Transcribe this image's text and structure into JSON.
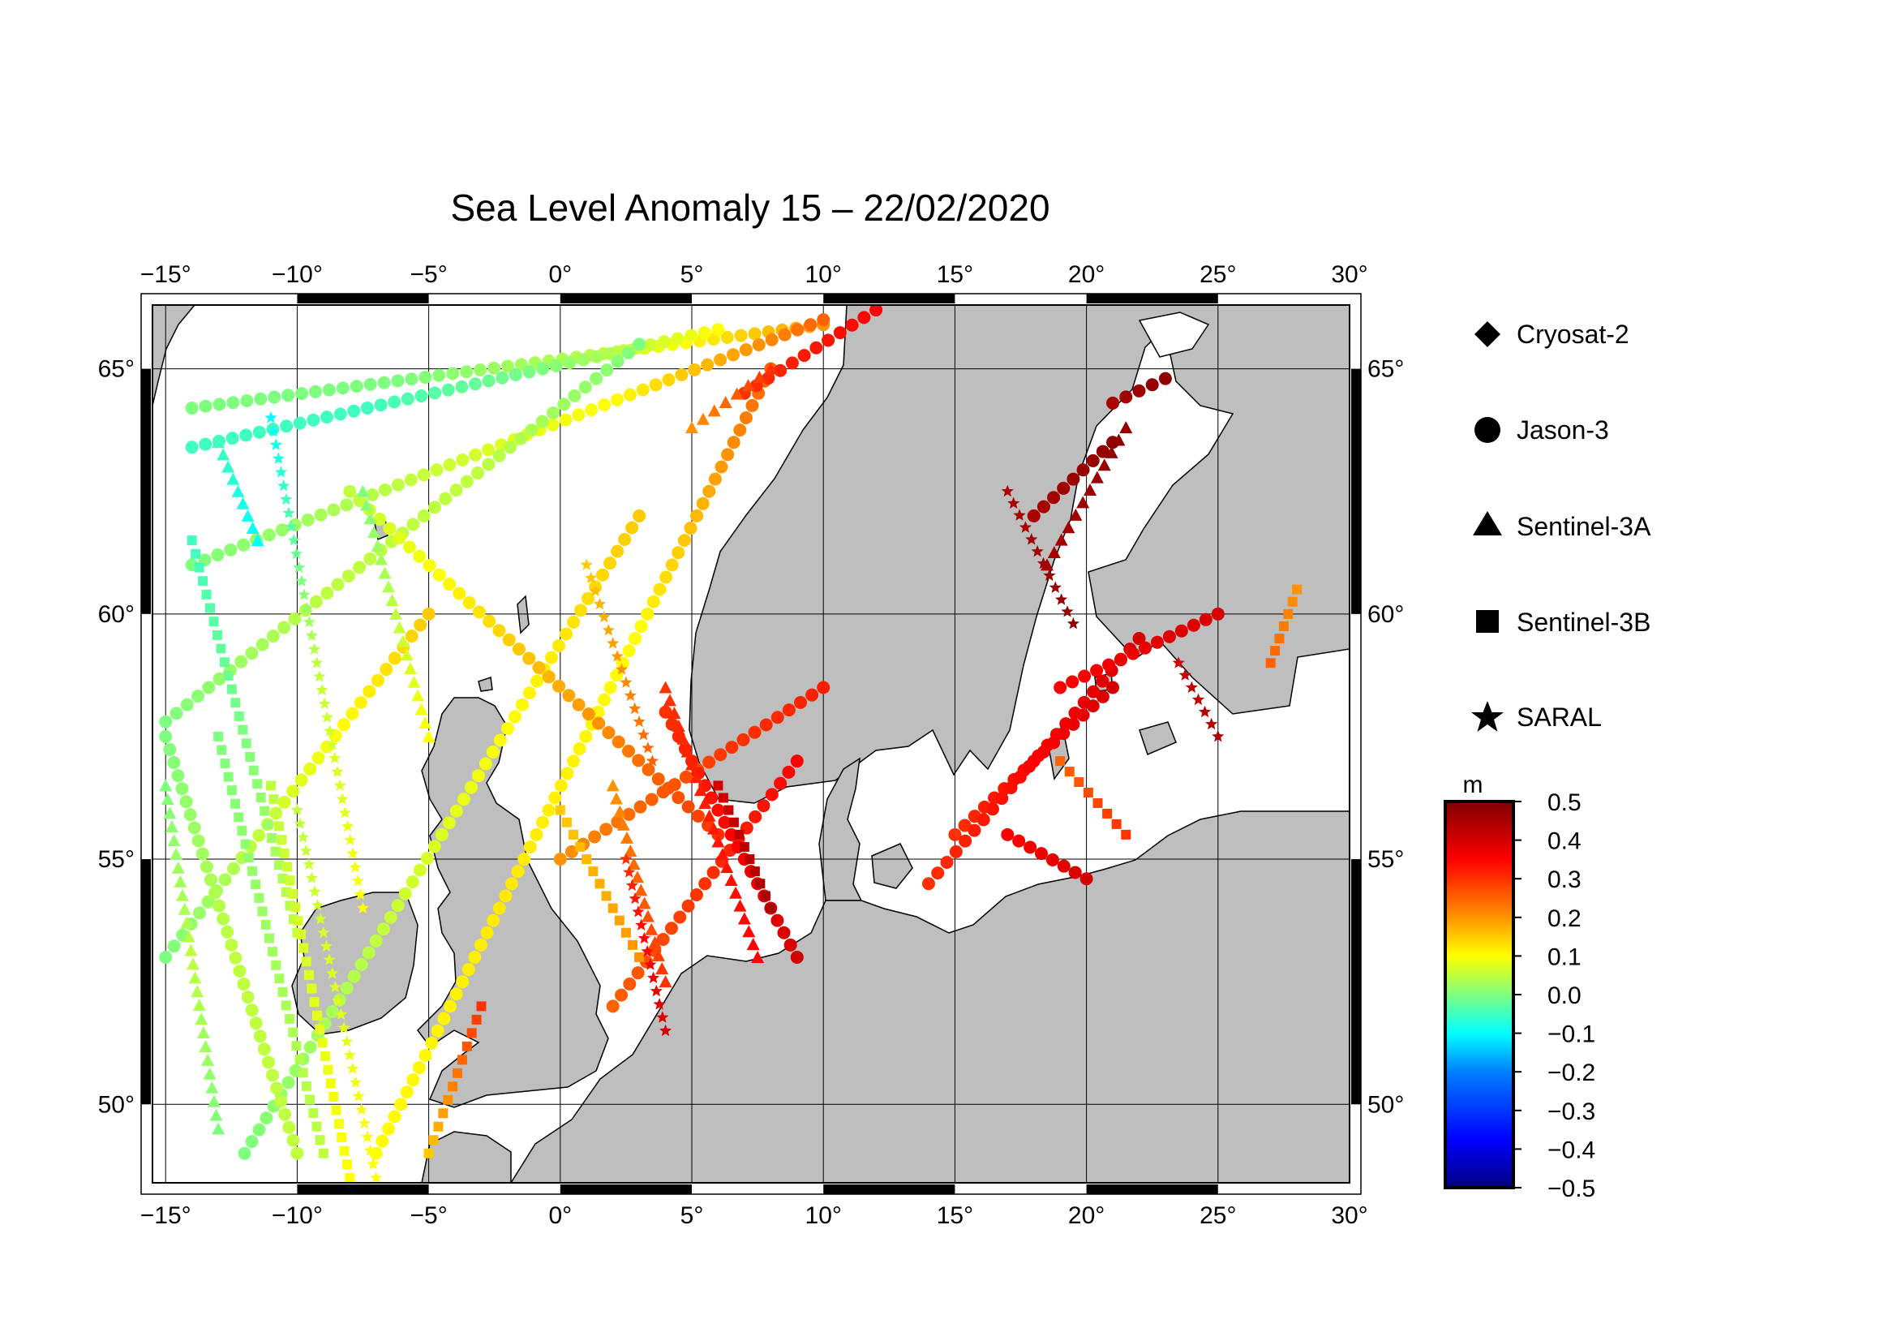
{
  "title": "Sea Level Anomaly 15 – 22/02/2020",
  "map": {
    "lon_range": [
      -15.5,
      30
    ],
    "lat_range": [
      48.4,
      66.3
    ],
    "lon_ticks": [
      {
        "value": -15,
        "label": "−15"
      },
      {
        "value": -10,
        "label": "−10"
      },
      {
        "value": -5,
        "label": "−5"
      },
      {
        "value": 0,
        "label": "0"
      },
      {
        "value": 5,
        "label": "5"
      },
      {
        "value": 10,
        "label": "10"
      },
      {
        "value": 15,
        "label": "15"
      },
      {
        "value": 20,
        "label": "20"
      },
      {
        "value": 25,
        "label": "25"
      },
      {
        "value": 30,
        "label": "30"
      }
    ],
    "lat_ticks": [
      {
        "value": 50,
        "label": "50"
      },
      {
        "value": 55,
        "label": "55"
      },
      {
        "value": 60,
        "label": "60"
      },
      {
        "value": 65,
        "label": "65"
      }
    ],
    "grid": true,
    "ocean_color": "#ffffff",
    "land_color": "#bebebe"
  },
  "legend": {
    "items": [
      {
        "symbol": "diamond",
        "label": "Cryosat-2"
      },
      {
        "symbol": "circle",
        "label": "Jason-3"
      },
      {
        "symbol": "triangle",
        "label": "Sentinel-3A"
      },
      {
        "symbol": "square",
        "label": "Sentinel-3B"
      },
      {
        "symbol": "star",
        "label": "SARAL"
      }
    ]
  },
  "colorbar": {
    "unit": "m",
    "min": -0.5,
    "max": 0.5,
    "ticks": [
      "0.5",
      "0.4",
      "0.3",
      "0.2",
      "0.1",
      "0.0",
      "−0.1",
      "−0.2",
      "−0.3",
      "−0.4",
      "−0.5"
    ],
    "stops": [
      "#00007f",
      "#0000ff",
      "#007fff",
      "#00ffff",
      "#7fff7f",
      "#ffff00",
      "#ff7f00",
      "#ff0000",
      "#7f0000"
    ]
  },
  "chart_data": {
    "type": "scatter",
    "xlabel": "",
    "ylabel": "",
    "xlim": [
      -15.5,
      30
    ],
    "ylim": [
      48.4,
      66.3
    ],
    "series": [
      {
        "name": "Jason-3",
        "symbol": "circle",
        "segments": [
          {
            "from": [
              -14,
              64.2
            ],
            "to": [
              10,
              65.9
            ],
            "values": [
              0.0,
              0.0,
              0.05,
              0.2
            ]
          },
          {
            "from": [
              -14,
              63.4
            ],
            "to": [
              6,
              65.8
            ],
            "values": [
              -0.05,
              -0.05,
              0.0,
              0.1
            ]
          },
          {
            "from": [
              -14,
              61.0
            ],
            "to": [
              10,
              66.0
            ],
            "values": [
              0.0,
              0.05,
              0.1,
              0.25
            ]
          },
          {
            "from": [
              -15,
              57.8
            ],
            "to": [
              3,
              65.5
            ],
            "values": [
              0.0,
              0.05,
              0.05,
              0.0
            ]
          },
          {
            "from": [
              -7,
              49.0
            ],
            "to": [
              8,
              65.0
            ],
            "values": [
              0.1,
              0.12,
              0.1,
              0.25
            ]
          },
          {
            "from": [
              -12,
              49.0
            ],
            "to": [
              3,
              62.0
            ],
            "values": [
              0.0,
              0.05,
              0.1,
              0.15
            ]
          },
          {
            "from": [
              -15,
              53.0
            ],
            "to": [
              -5,
              60.0
            ],
            "values": [
              0.0,
              0.05,
              0.1,
              0.15
            ]
          },
          {
            "from": [
              -15,
              57.5
            ],
            "to": [
              -10,
              49.0
            ],
            "values": [
              0.0,
              0.05,
              0.05
            ]
          },
          {
            "from": [
              -8,
              62.5
            ],
            "to": [
              6,
              55.5
            ],
            "values": [
              0.05,
              0.12,
              0.2,
              0.3
            ]
          },
          {
            "from": [
              0,
              55.0
            ],
            "to": [
              10,
              58.5
            ],
            "values": [
              0.2,
              0.25,
              0.3,
              0.32
            ]
          },
          {
            "from": [
              2,
              52.0
            ],
            "to": [
              9,
              57.0
            ],
            "values": [
              0.25,
              0.3,
              0.35
            ]
          },
          {
            "from": [
              4,
              58.0
            ],
            "to": [
              9,
              53.0
            ],
            "values": [
              0.3,
              0.35,
              0.4
            ]
          },
          {
            "from": [
              7,
              64.5
            ],
            "to": [
              12,
              66.2
            ],
            "values": [
              0.3,
              0.35
            ]
          },
          {
            "from": [
              15,
              55.5
            ],
            "to": [
              21,
              58.5
            ],
            "values": [
              0.3,
              0.35,
              0.4
            ]
          },
          {
            "from": [
              14,
              54.5
            ],
            "to": [
              22,
              59.5
            ],
            "values": [
              0.3,
              0.35,
              0.4
            ]
          },
          {
            "from": [
              17,
              55.5
            ],
            "to": [
              20,
              54.6
            ],
            "values": [
              0.35,
              0.4
            ]
          },
          {
            "from": [
              19,
              58.5
            ],
            "to": [
              25,
              60.0
            ],
            "values": [
              0.35,
              0.4
            ]
          },
          {
            "from": [
              18,
              62.0
            ],
            "to": [
              21,
              63.5
            ],
            "values": [
              0.45,
              0.48
            ]
          },
          {
            "from": [
              21,
              64.3
            ],
            "to": [
              23,
              64.8
            ],
            "values": [
              0.45,
              0.48
            ]
          }
        ]
      },
      {
        "name": "Sentinel-3A",
        "symbol": "triangle",
        "segments": [
          {
            "from": [
              -15,
              56.5
            ],
            "to": [
              -13,
              49.5
            ],
            "values": [
              0.0,
              0.05,
              0.0
            ]
          },
          {
            "from": [
              -13,
              63.5
            ],
            "to": [
              -11.5,
              61.5
            ],
            "values": [
              -0.05,
              -0.1
            ]
          },
          {
            "from": [
              -7.5,
              62.5
            ],
            "to": [
              -5,
              57.5
            ],
            "values": [
              0.0,
              0.1
            ]
          },
          {
            "from": [
              2,
              56.5
            ],
            "to": [
              4,
              52.5
            ],
            "values": [
              0.2,
              0.3
            ]
          },
          {
            "from": [
              4,
              58.5
            ],
            "to": [
              7.5,
              53.0
            ],
            "values": [
              0.3,
              0.35
            ]
          },
          {
            "from": [
              5,
              63.8
            ],
            "to": [
              8,
              65.0
            ],
            "values": [
              0.2,
              0.3
            ]
          },
          {
            "from": [
              18.5,
              61.0
            ],
            "to": [
              21.5,
              63.8
            ],
            "values": [
              0.45,
              0.48
            ]
          }
        ]
      },
      {
        "name": "Sentinel-3B",
        "symbol": "square",
        "segments": [
          {
            "from": [
              -14,
              61.5
            ],
            "to": [
              -10,
              53.5
            ],
            "values": [
              -0.05,
              0.0,
              0.05
            ]
          },
          {
            "from": [
              -13,
              57.5
            ],
            "to": [
              -9,
              49.0
            ],
            "values": [
              0.0,
              0.05
            ]
          },
          {
            "from": [
              -11,
              56.5
            ],
            "to": [
              -8,
              48.5
            ],
            "values": [
              0.05,
              0.1
            ]
          },
          {
            "from": [
              -5,
              49.0
            ],
            "to": [
              -3,
              52.0
            ],
            "values": [
              0.15,
              0.3
            ]
          },
          {
            "from": [
              0,
              56.0
            ],
            "to": [
              3,
              53.0
            ],
            "values": [
              0.15,
              0.2
            ]
          },
          {
            "from": [
              6,
              56.5
            ],
            "to": [
              8,
              54.0
            ],
            "values": [
              0.4,
              0.45
            ]
          },
          {
            "from": [
              19,
              57.0
            ],
            "to": [
              21.5,
              55.5
            ],
            "values": [
              0.25,
              0.3
            ]
          },
          {
            "from": [
              27,
              59.0
            ],
            "to": [
              28,
              60.5
            ],
            "values": [
              0.25,
              0.2
            ]
          }
        ]
      },
      {
        "name": "SARAL",
        "symbol": "star",
        "segments": [
          {
            "from": [
              -11,
              64.0
            ],
            "to": [
              -7.5,
              54.0
            ],
            "values": [
              -0.1,
              0.05,
              0.1
            ]
          },
          {
            "from": [
              -10,
              56.0
            ],
            "to": [
              -7,
              48.5
            ],
            "values": [
              0.05,
              0.1
            ]
          },
          {
            "from": [
              1,
              61.0
            ],
            "to": [
              3.5,
              57.0
            ],
            "values": [
              0.15,
              0.25
            ]
          },
          {
            "from": [
              2.5,
              55.0
            ],
            "to": [
              4,
              51.5
            ],
            "values": [
              0.3,
              0.4
            ]
          },
          {
            "from": [
              17,
              62.5
            ],
            "to": [
              19.5,
              59.8
            ],
            "values": [
              0.45,
              0.48
            ]
          },
          {
            "from": [
              23.5,
              59.0
            ],
            "to": [
              25,
              57.5
            ],
            "values": [
              0.4,
              0.45
            ]
          }
        ]
      }
    ]
  }
}
